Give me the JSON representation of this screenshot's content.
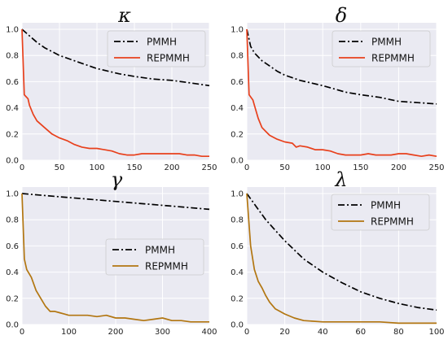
{
  "chart_data": [
    {
      "type": "line",
      "title": "κ",
      "xlim": [
        0,
        250
      ],
      "ylim": [
        0,
        1.05
      ],
      "xticks": [
        0,
        50,
        100,
        150,
        200,
        250
      ],
      "yticks": [
        0.0,
        0.2,
        0.4,
        0.6,
        0.8,
        1.0
      ],
      "grid": true,
      "legend": "top-right",
      "series": [
        {
          "name": "PMMH",
          "color": "#000000",
          "dash": "dashdot",
          "x": [
            0,
            10,
            20,
            30,
            40,
            50,
            70,
            100,
            130,
            150,
            175,
            200,
            225,
            250
          ],
          "y": [
            1.0,
            0.95,
            0.9,
            0.86,
            0.83,
            0.8,
            0.76,
            0.7,
            0.66,
            0.64,
            0.62,
            0.61,
            0.59,
            0.57
          ]
        },
        {
          "name": "REPMMH",
          "color": "#e8401c",
          "dash": "solid",
          "x": [
            0,
            3,
            8,
            10,
            15,
            20,
            30,
            40,
            50,
            60,
            70,
            80,
            90,
            100,
            110,
            120,
            130,
            140,
            150,
            160,
            170,
            180,
            190,
            200,
            210,
            220,
            230,
            240,
            250
          ],
          "y": [
            1.0,
            0.5,
            0.47,
            0.42,
            0.35,
            0.3,
            0.25,
            0.2,
            0.17,
            0.15,
            0.12,
            0.1,
            0.09,
            0.09,
            0.08,
            0.07,
            0.05,
            0.04,
            0.04,
            0.05,
            0.05,
            0.05,
            0.05,
            0.05,
            0.05,
            0.04,
            0.04,
            0.03,
            0.03
          ]
        }
      ]
    },
    {
      "type": "line",
      "title": "δ",
      "xlim": [
        0,
        250
      ],
      "ylim": [
        0,
        1.05
      ],
      "xticks": [
        0,
        50,
        100,
        150,
        200,
        250
      ],
      "yticks": [
        0.0,
        0.2,
        0.4,
        0.6,
        0.8,
        1.0
      ],
      "grid": true,
      "legend": "top-right",
      "series": [
        {
          "name": "PMMH",
          "color": "#000000",
          "dash": "dashdot",
          "x": [
            0,
            5,
            10,
            20,
            30,
            40,
            50,
            70,
            100,
            130,
            150,
            175,
            200,
            225,
            250
          ],
          "y": [
            1.0,
            0.87,
            0.82,
            0.76,
            0.72,
            0.68,
            0.65,
            0.61,
            0.57,
            0.52,
            0.5,
            0.48,
            0.45,
            0.44,
            0.43
          ]
        },
        {
          "name": "REPMMH",
          "color": "#e8401c",
          "dash": "solid",
          "x": [
            0,
            3,
            8,
            10,
            15,
            20,
            25,
            30,
            40,
            50,
            60,
            65,
            70,
            80,
            90,
            100,
            110,
            120,
            130,
            140,
            150,
            160,
            170,
            180,
            190,
            200,
            210,
            220,
            230,
            240,
            250
          ],
          "y": [
            1.0,
            0.5,
            0.46,
            0.42,
            0.32,
            0.25,
            0.22,
            0.19,
            0.16,
            0.14,
            0.13,
            0.1,
            0.11,
            0.1,
            0.08,
            0.08,
            0.07,
            0.05,
            0.04,
            0.04,
            0.04,
            0.05,
            0.04,
            0.04,
            0.04,
            0.05,
            0.05,
            0.04,
            0.03,
            0.04,
            0.03
          ]
        }
      ]
    },
    {
      "type": "line",
      "title": "γ",
      "xlim": [
        0,
        400
      ],
      "ylim": [
        0,
        1.05
      ],
      "xticks": [
        0,
        100,
        200,
        300,
        400
      ],
      "yticks": [
        0.0,
        0.2,
        0.4,
        0.6,
        0.8,
        1.0
      ],
      "grid": true,
      "legend": "center-right",
      "series": [
        {
          "name": "PMMH",
          "color": "#000000",
          "dash": "dashdot",
          "x": [
            0,
            50,
            100,
            150,
            200,
            250,
            300,
            350,
            400
          ],
          "y": [
            1.0,
            0.985,
            0.97,
            0.955,
            0.94,
            0.925,
            0.91,
            0.895,
            0.88
          ]
        },
        {
          "name": "REPMMH",
          "color": "#b27611",
          "dash": "solid",
          "x": [
            0,
            5,
            10,
            20,
            30,
            40,
            50,
            60,
            70,
            80,
            90,
            100,
            120,
            140,
            160,
            180,
            200,
            220,
            240,
            260,
            280,
            300,
            320,
            340,
            360,
            380,
            400
          ],
          "y": [
            1.0,
            0.5,
            0.42,
            0.36,
            0.26,
            0.2,
            0.14,
            0.1,
            0.1,
            0.09,
            0.08,
            0.07,
            0.07,
            0.07,
            0.06,
            0.07,
            0.05,
            0.05,
            0.04,
            0.03,
            0.04,
            0.05,
            0.03,
            0.03,
            0.02,
            0.02,
            0.02
          ]
        }
      ]
    },
    {
      "type": "line",
      "title": "λ",
      "xlim": [
        0,
        100
      ],
      "ylim": [
        0,
        1.05
      ],
      "xticks": [
        0,
        20,
        40,
        60,
        80,
        100
      ],
      "yticks": [
        0.0,
        0.2,
        0.4,
        0.6,
        0.8,
        1.0
      ],
      "grid": true,
      "legend": "top-right",
      "series": [
        {
          "name": "PMMH",
          "color": "#000000",
          "dash": "dashdot",
          "x": [
            0,
            5,
            10,
            15,
            20,
            25,
            30,
            40,
            50,
            60,
            70,
            80,
            90,
            100
          ],
          "y": [
            1.0,
            0.9,
            0.8,
            0.72,
            0.64,
            0.57,
            0.5,
            0.4,
            0.32,
            0.25,
            0.2,
            0.16,
            0.13,
            0.11
          ]
        },
        {
          "name": "REPMMH",
          "color": "#b27611",
          "dash": "solid",
          "x": [
            0,
            2,
            4,
            6,
            8,
            10,
            12,
            15,
            20,
            25,
            30,
            40,
            50,
            60,
            70,
            80,
            90,
            100
          ],
          "y": [
            1.0,
            0.6,
            0.42,
            0.33,
            0.28,
            0.22,
            0.17,
            0.12,
            0.08,
            0.05,
            0.03,
            0.02,
            0.02,
            0.02,
            0.02,
            0.01,
            0.01,
            0.01
          ]
        }
      ]
    }
  ]
}
